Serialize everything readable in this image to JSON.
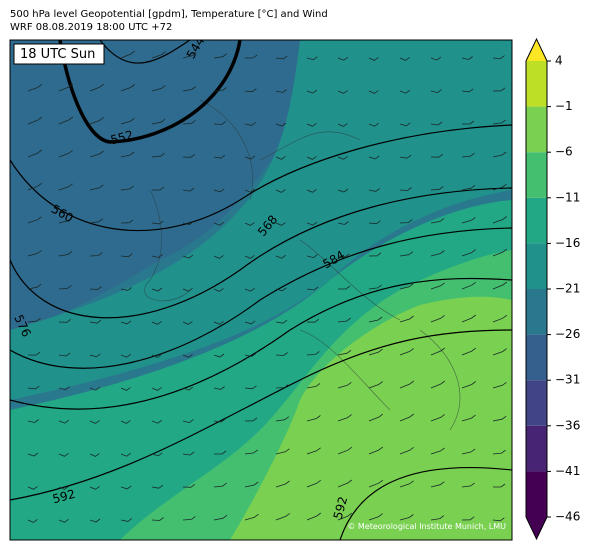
{
  "header": {
    "title": "500 hPa level Geopotential [gpdm], Temperature [°C] and Wind",
    "subtitle": "WRF 08.08.2019 18:00 UTC +72"
  },
  "map": {
    "time_label": "18 UTC Sun",
    "contour_labels": [
      "544",
      "552",
      "560",
      "568",
      "576",
      "584",
      "592",
      "592"
    ],
    "credit": "© Meteorological Institute Munich, LMU"
  },
  "colorbar": {
    "lim": [
      -46,
      4
    ],
    "ticks": [
      4,
      {
        "value": -1,
        "label": "−1"
      },
      {
        "value": -6,
        "label": "−6"
      },
      {
        "value": -11,
        "label": "−11"
      },
      {
        "value": -16,
        "label": "−16"
      },
      {
        "value": -21,
        "label": "−21"
      },
      {
        "value": -26,
        "label": "−26"
      },
      {
        "value": -31,
        "label": "−31"
      },
      {
        "value": -36,
        "label": "−36"
      },
      {
        "value": -41,
        "label": "−41"
      },
      {
        "value": -46,
        "label": "−46"
      }
    ],
    "colors": [
      "#440154",
      "#482475",
      "#414487",
      "#355f8d",
      "#2a788e",
      "#21918c",
      "#22a884",
      "#44bf70",
      "#7ad151",
      "#bddf26"
    ],
    "over_color": "#fde725",
    "under_color": "#440154"
  }
}
